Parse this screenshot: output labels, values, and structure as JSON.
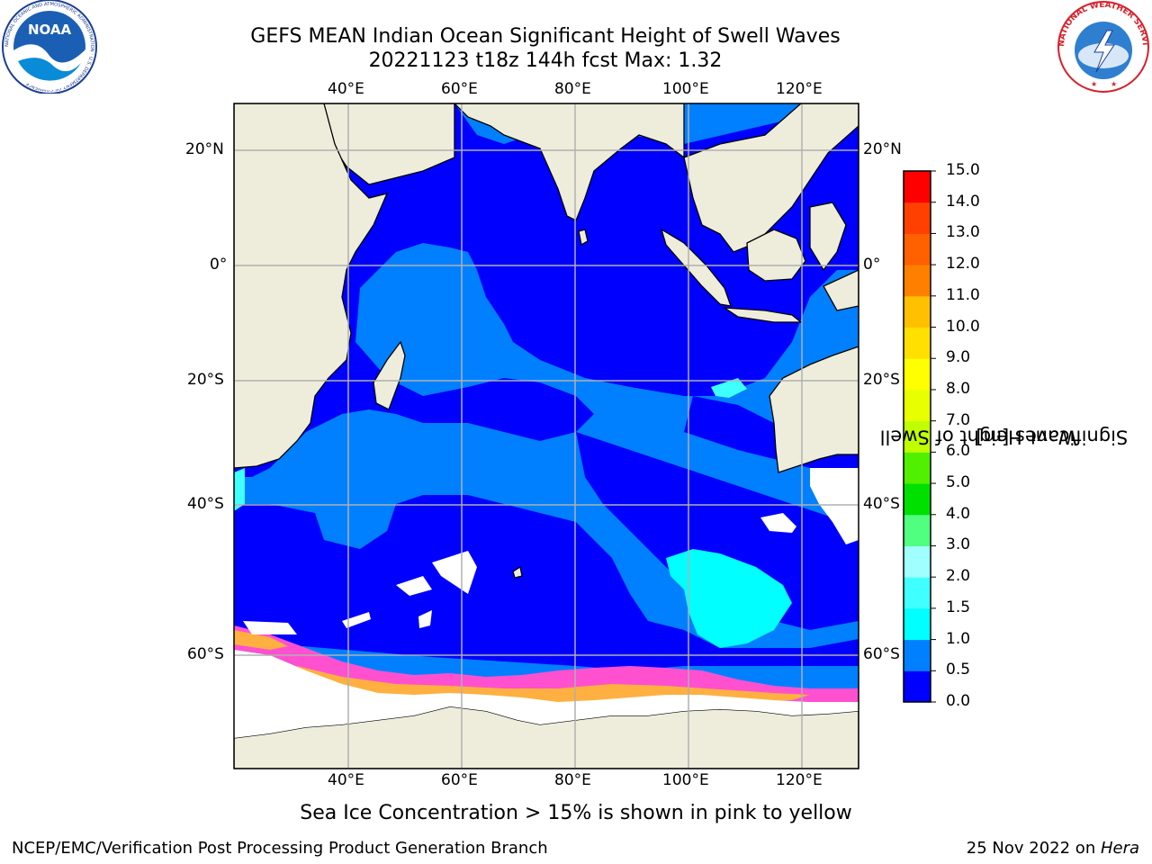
{
  "title": {
    "line1": "GEFS MEAN Indian Ocean Significant Height of Swell Waves",
    "line2": "20221123 t18z 144h fcst   Max: 1.32"
  },
  "map": {
    "lon_labels": [
      "40°E",
      "60°E",
      "80°E",
      "100°E",
      "120°E"
    ],
    "lat_labels": [
      "20°N",
      "0°",
      "20°S",
      "40°S",
      "60°S"
    ]
  },
  "colorbar": {
    "label_line1": "Significant Height of Swell",
    "label_line2": "Waves [m]",
    "ticks": [
      "15.0",
      "14.0",
      "13.0",
      "12.0",
      "11.0",
      "10.0",
      "9.0",
      "8.0",
      "7.0",
      "6.0",
      "5.0",
      "4.0",
      "3.0",
      "2.0",
      "1.5",
      "1.0",
      "0.5",
      "0.0"
    ],
    "colors": [
      "#0000ff",
      "#0080ff",
      "#00ffff",
      "#40ffff",
      "#a0ffff",
      "#50ff80",
      "#00e000",
      "#50f000",
      "#c0ff00",
      "#e8ff00",
      "#ffff00",
      "#ffe000",
      "#ffc000",
      "#ff8000",
      "#ff6000",
      "#ff4000",
      "#ff0000"
    ]
  },
  "note": "Sea Ice Concentration > 15% is shown in pink to yellow",
  "footer": {
    "left": "NCEP/EMC/Verification Post Processing Product Generation Branch",
    "right_date": "25 Nov 2022 on ",
    "right_machine": "Hera"
  },
  "logos": {
    "noaa_text": "NOAA",
    "noaa_ring": "NATIONAL OCEANIC AND ATMOSPHERIC ADMINISTRATION · U.S. DEPARTMENT OF COMMERCE",
    "nws_ring": "NATIONAL WEATHER SERVICE"
  }
}
